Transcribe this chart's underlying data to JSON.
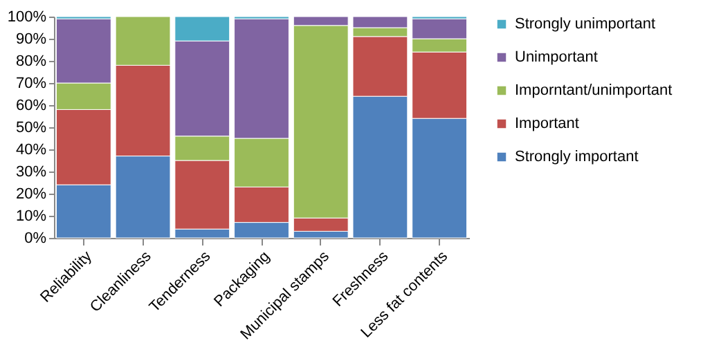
{
  "chart_data": {
    "type": "bar",
    "stacked": true,
    "categories": [
      "Reliability",
      "Cleanliness",
      "Tenderness",
      "Packaging",
      "Municipal stamps",
      "Freshness",
      "Less fat contents"
    ],
    "series": [
      {
        "name": "Strongly important",
        "color": "#4f81bd",
        "values": [
          24,
          37,
          4,
          7,
          3,
          64,
          54
        ]
      },
      {
        "name": "Important",
        "color": "#c0504d",
        "values": [
          34,
          41,
          31,
          16,
          6,
          27,
          30
        ]
      },
      {
        "name": "Imporntant/unimportant",
        "color": "#9bbb59",
        "values": [
          12,
          22,
          11,
          22,
          87,
          4,
          6
        ]
      },
      {
        "name": "Unimportant",
        "color": "#8064a2",
        "values": [
          29,
          null,
          43,
          54,
          4,
          5,
          9
        ]
      },
      {
        "name": "Strongly unimportant",
        "color": "#4bacc6",
        "values": [
          1,
          null,
          11,
          1,
          null,
          null,
          1
        ]
      }
    ],
    "ylim": [
      0,
      100
    ],
    "yticks": [
      {
        "value": 0,
        "label": "0%"
      },
      {
        "value": 10,
        "label": "10%"
      },
      {
        "value": 20,
        "label": "20%"
      },
      {
        "value": 30,
        "label": "30%"
      },
      {
        "value": 40,
        "label": "40%"
      },
      {
        "value": 50,
        "label": "50%"
      },
      {
        "value": 60,
        "label": "60%"
      },
      {
        "value": 70,
        "label": "70%"
      },
      {
        "value": 80,
        "label": "80%"
      },
      {
        "value": 90,
        "label": "90%"
      },
      {
        "value": 100,
        "label": "100%"
      }
    ],
    "grid": false,
    "legend": "right"
  }
}
